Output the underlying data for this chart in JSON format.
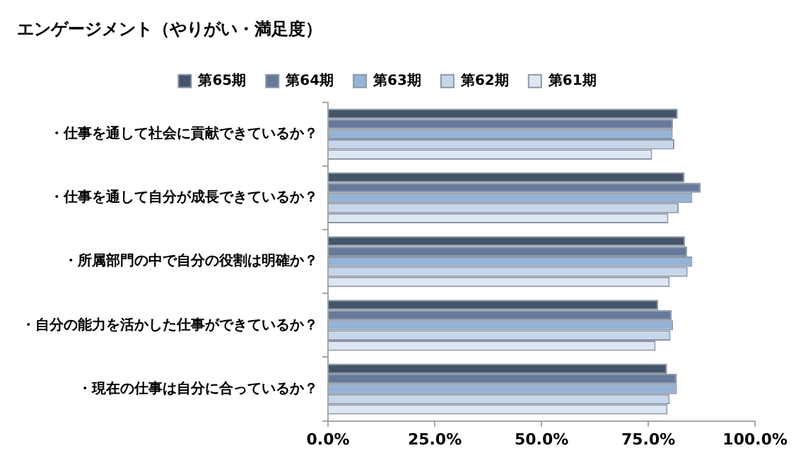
{
  "chart_data": {
    "type": "bar",
    "orientation": "horizontal",
    "title": "エンゲージメント（やりがい・満足度）",
    "categories": [
      "・仕事を通して社会に貢献できているか？",
      "・仕事を通して自分が成長できているか？",
      "・所属部門の中で自分の役割は明確か？",
      "・自分の能力を活かした仕事ができているか？",
      "・現在の仕事は自分に合っているか？"
    ],
    "series": [
      {
        "name": "第65期",
        "color": "#44546a",
        "values": [
          81.9,
          83.5,
          83.6,
          77.3,
          79.4
        ]
      },
      {
        "name": "第64期",
        "color": "#66799b",
        "values": [
          80.8,
          87.3,
          84.1,
          80.5,
          81.7
        ]
      },
      {
        "name": "第63期",
        "color": "#95b3d7",
        "values": [
          80.7,
          85.3,
          85.3,
          80.8,
          81.7
        ]
      },
      {
        "name": "第62期",
        "color": "#c6d6eb",
        "values": [
          81.1,
          82.1,
          84.2,
          80.2,
          80.0
        ]
      },
      {
        "name": "第61期",
        "color": "#dde7f3",
        "values": [
          75.9,
          79.7,
          80.0,
          76.7,
          79.5
        ]
      }
    ],
    "xlim": [
      0,
      100
    ],
    "xticks": [
      {
        "value": 0,
        "label": "0.0%"
      },
      {
        "value": 25,
        "label": "25.0%"
      },
      {
        "value": 50,
        "label": "50.0%"
      },
      {
        "value": 75,
        "label": "75.0%"
      },
      {
        "value": 100,
        "label": "100.0%"
      }
    ],
    "grid": false,
    "legend": "top"
  }
}
